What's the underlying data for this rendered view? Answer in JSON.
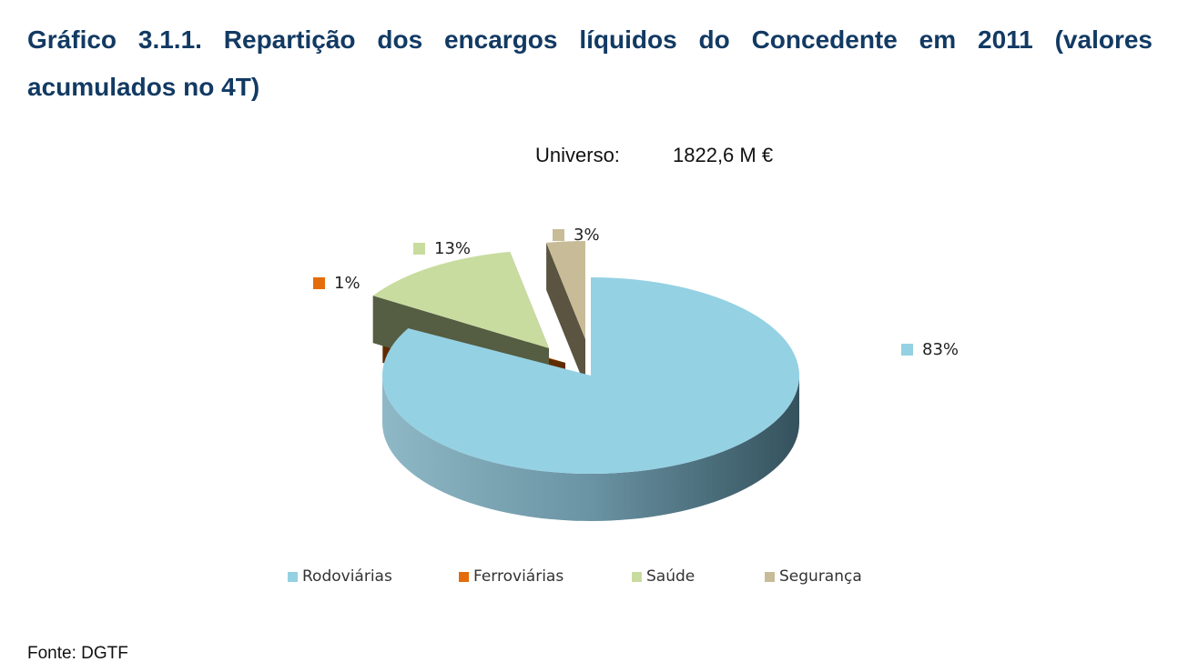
{
  "page": {
    "title": "Gráfico 3.1.1. Repartição dos encargos líquidos do Concedente em 2011 (valores acumulados no 4T)",
    "source": "Fonte: DGTF"
  },
  "chart_data": {
    "type": "pie",
    "subtitle_label": "Universo:",
    "subtitle_value": "1822,6 M €",
    "categories": [
      "Rodoviárias",
      "Ferroviárias",
      "Saúde",
      "Segurança"
    ],
    "values": [
      83,
      1,
      13,
      3
    ],
    "data_labels": [
      "83%",
      "1%",
      "13%",
      "3%"
    ],
    "colors": [
      "#94d1e3",
      "#e46c0a",
      "#c9dca0",
      "#c8bc98"
    ],
    "side_colors": [
      "#4e7f8e",
      "#5f2b00",
      "#555d42",
      "#5a5440"
    ],
    "exploded": [
      "Ferroviárias",
      "Saúde",
      "Segurança"
    ],
    "legend_position": "bottom"
  }
}
